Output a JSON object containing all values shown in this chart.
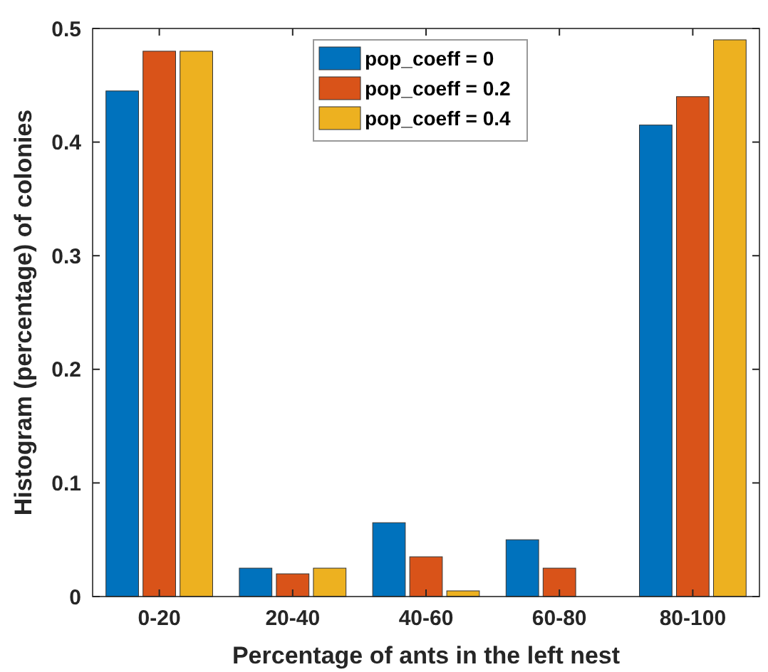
{
  "chart_data": {
    "type": "bar",
    "xlabel": "Percentage of ants in the left nest",
    "ylabel": "Histogram (percentage) of colonies",
    "categories": [
      "0-20",
      "20-40",
      "40-60",
      "60-80",
      "80-100"
    ],
    "series": [
      {
        "name": "pop_coeff = 0",
        "color": "#0072bd",
        "values": [
          0.445,
          0.025,
          0.065,
          0.05,
          0.415
        ]
      },
      {
        "name": "pop_coeff = 0.2",
        "color": "#d95319",
        "values": [
          0.48,
          0.02,
          0.035,
          0.025,
          0.44
        ]
      },
      {
        "name": "pop_coeff = 0.4",
        "color": "#edb120",
        "values": [
          0.48,
          0.025,
          0.005,
          0,
          0.49
        ]
      }
    ],
    "ylim": [
      0,
      0.5
    ],
    "yticks": [
      0,
      0.1,
      0.2,
      0.3,
      0.4,
      0.5
    ],
    "grid": false,
    "legend": "top"
  }
}
